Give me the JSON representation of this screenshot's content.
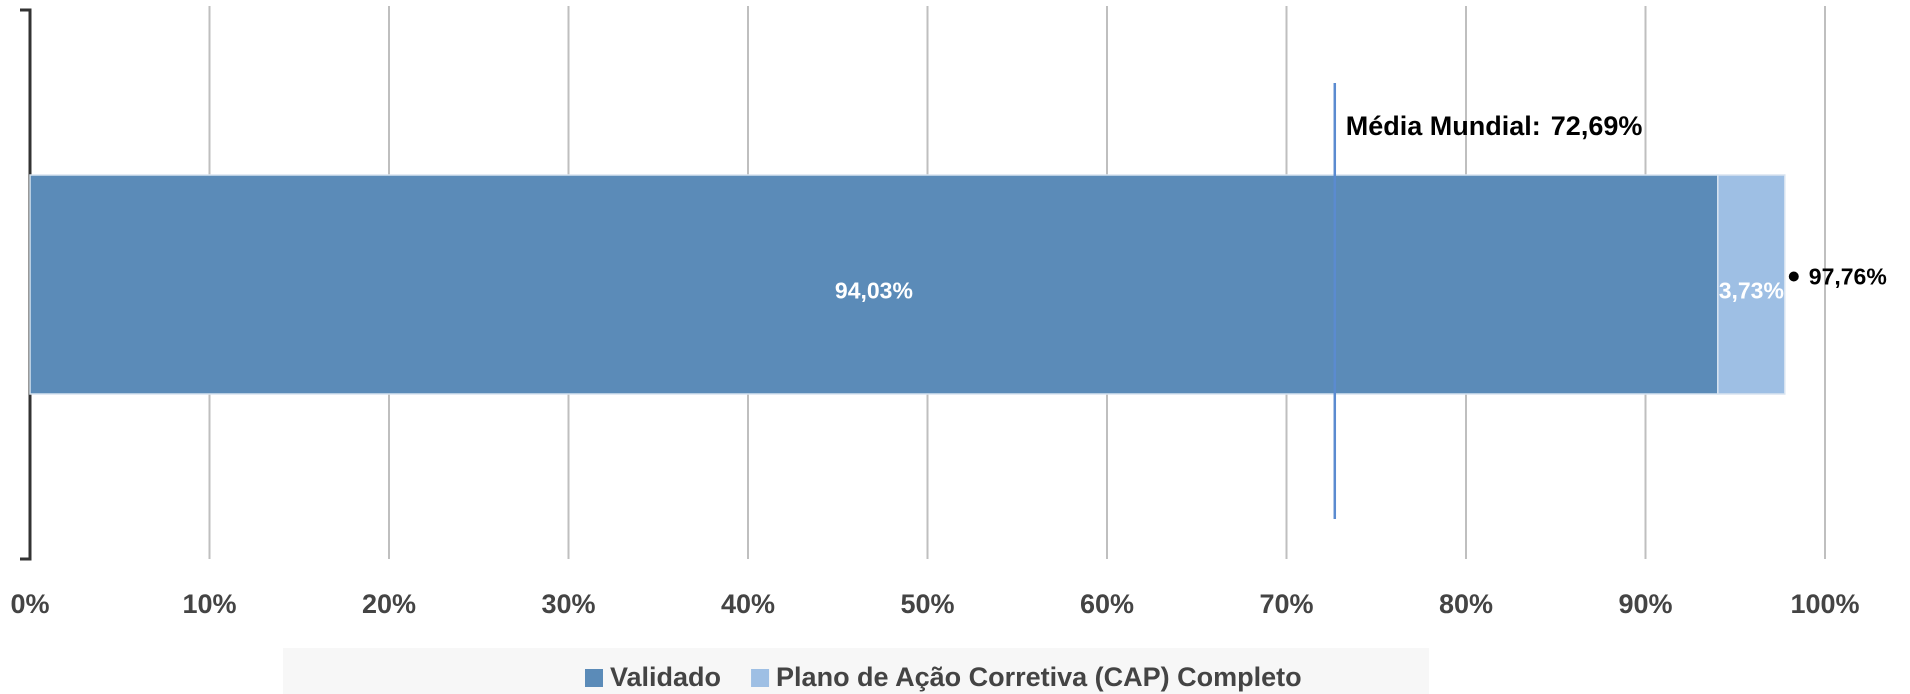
{
  "chart_data": {
    "type": "stacked_barh",
    "categories": [
      null
    ],
    "series": [
      {
        "name": "Validado",
        "color": "#5b8bb8",
        "values": [
          94.03
        ],
        "value_labels": [
          "94,03%"
        ]
      },
      {
        "name": "Plano de Ação Corretiva (CAP) Completo",
        "color": "#9ebfe4",
        "values": [
          3.73
        ],
        "value_labels": [
          "3,73%"
        ]
      }
    ],
    "total": {
      "value": 97.76,
      "label": "97,76%"
    },
    "reference_line": {
      "label": "Média Mundial:",
      "value": 72.69,
      "value_label": "72,69%",
      "color": "#5b8bd0"
    },
    "xlim": [
      0,
      100
    ],
    "xticks": [
      {
        "value": 0,
        "label": "0%"
      },
      {
        "value": 10,
        "label": "10%"
      },
      {
        "value": 20,
        "label": "20%"
      },
      {
        "value": 30,
        "label": "30%"
      },
      {
        "value": 40,
        "label": "40%"
      },
      {
        "value": 50,
        "label": "50%"
      },
      {
        "value": 60,
        "label": "60%"
      },
      {
        "value": 70,
        "label": "70%"
      },
      {
        "value": 80,
        "label": "80%"
      },
      {
        "value": 90,
        "label": "90%"
      },
      {
        "value": 100,
        "label": "100%"
      }
    ],
    "grid": true,
    "legend": "bottom"
  }
}
